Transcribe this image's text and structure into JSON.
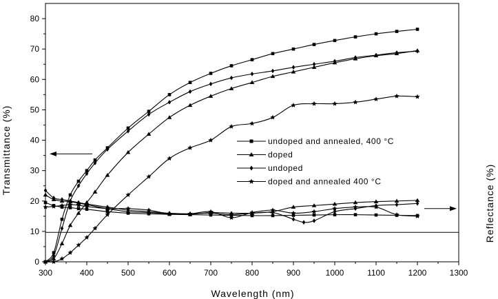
{
  "chart_data": {
    "type": "line",
    "xlabel": "Wavelength (nm)",
    "ylabel_left": "Transmittance (%)",
    "ylabel_right": "Reflectance (%)",
    "xlim": [
      300,
      1300
    ],
    "ylim": [
      0,
      85
    ],
    "x_ticks": [
      300,
      400,
      500,
      600,
      700,
      800,
      900,
      1000,
      1100,
      1200,
      1300
    ],
    "y_ticks": [
      0,
      10,
      20,
      30,
      40,
      50,
      60,
      70,
      80
    ],
    "grid": false,
    "reference_line_y": 9.7,
    "legend_position": "center-right",
    "series": [
      {
        "name": "undoped and annealed, 400 °C",
        "marker": "square",
        "group": "transmittance",
        "x": [
          300,
          320,
          340,
          360,
          380,
          400,
          420,
          450,
          500,
          550,
          600,
          650,
          700,
          750,
          800,
          850,
          900,
          950,
          1000,
          1050,
          1100,
          1150,
          1200
        ],
        "y": [
          0,
          3,
          14,
          22,
          26.5,
          30,
          33.5,
          37.5,
          44,
          49.5,
          55,
          59,
          62,
          64.5,
          66.5,
          68.5,
          70,
          71.5,
          72.8,
          74,
          75,
          75.8,
          76.5
        ]
      },
      {
        "name": "doped",
        "marker": "triangle",
        "group": "transmittance",
        "x": [
          300,
          320,
          340,
          360,
          380,
          400,
          420,
          450,
          500,
          550,
          600,
          650,
          700,
          750,
          800,
          850,
          900,
          950,
          1000,
          1050,
          1100,
          1150,
          1200
        ],
        "y": [
          0,
          1,
          6,
          12,
          16,
          19.5,
          23,
          28.5,
          36,
          42,
          47.5,
          51.5,
          54.5,
          57,
          59,
          61,
          62.5,
          64,
          65.5,
          66.8,
          67.8,
          68.5,
          69.5
        ]
      },
      {
        "name": "undoped",
        "marker": "diamond",
        "group": "transmittance",
        "x": [
          300,
          320,
          340,
          360,
          380,
          400,
          420,
          450,
          500,
          550,
          600,
          650,
          700,
          750,
          800,
          850,
          900,
          950,
          1000,
          1050,
          1100,
          1150,
          1200
        ],
        "y": [
          0,
          2,
          11,
          20,
          25,
          29,
          32.5,
          37,
          43,
          48.5,
          52.5,
          56,
          58.5,
          60.5,
          61.8,
          62.8,
          64,
          65,
          66,
          67.2,
          68,
          68.8,
          69.3
        ]
      },
      {
        "name": "doped and annealed 400 °C",
        "marker": "star",
        "group": "transmittance",
        "x": [
          300,
          320,
          340,
          360,
          380,
          400,
          420,
          450,
          500,
          550,
          600,
          650,
          700,
          750,
          800,
          850,
          900,
          950,
          1000,
          1050,
          1100,
          1150,
          1200
        ],
        "y": [
          0,
          0,
          1,
          3,
          5.5,
          8,
          11,
          15.5,
          22,
          28,
          34,
          37.5,
          40,
          44.5,
          45.5,
          47.5,
          51.5,
          52,
          52,
          52.5,
          53.5,
          54.5,
          54.3
        ]
      },
      {
        "name": "undoped and annealed, 400 °C",
        "marker": "square",
        "group": "reflectance",
        "x": [
          300,
          320,
          340,
          360,
          380,
          400,
          450,
          500,
          550,
          600,
          650,
          700,
          750,
          800,
          850,
          900,
          950,
          1000,
          1050,
          1100,
          1150,
          1200
        ],
        "y": [
          19.5,
          18.5,
          18,
          17.8,
          17.5,
          17.3,
          16.5,
          16,
          15.8,
          15.6,
          15.5,
          15.4,
          15.3,
          15.2,
          15.2,
          15.3,
          15.4,
          15.5,
          15.5,
          15.4,
          15.3,
          15.2
        ]
      },
      {
        "name": "doped",
        "marker": "triangle",
        "group": "reflectance",
        "x": [
          300,
          320,
          340,
          360,
          380,
          400,
          450,
          500,
          550,
          600,
          650,
          700,
          750,
          800,
          850,
          900,
          950,
          1000,
          1050,
          1100,
          1150,
          1200
        ],
        "y": [
          22,
          20.5,
          20,
          19.8,
          19.3,
          18.8,
          17.5,
          16.5,
          16.2,
          15.8,
          15.6,
          16.2,
          16,
          16,
          16.5,
          18,
          18.5,
          19,
          19.5,
          19.8,
          20,
          20.2
        ]
      },
      {
        "name": "undoped",
        "marker": "diamond",
        "group": "reflectance",
        "x": [
          300,
          320,
          340,
          360,
          380,
          400,
          450,
          500,
          550,
          600,
          650,
          700,
          750,
          800,
          850,
          900,
          925,
          950,
          1000,
          1050,
          1100,
          1150,
          1200
        ],
        "y": [
          23.5,
          21,
          20.5,
          20,
          19.5,
          19,
          18,
          17,
          16.5,
          16,
          15.8,
          16,
          15.5,
          16,
          16.2,
          14,
          13,
          13.5,
          16.5,
          17.5,
          18.5,
          18.8,
          19.2
        ]
      },
      {
        "name": "doped and annealed 400 °C",
        "marker": "star",
        "group": "reflectance",
        "x": [
          300,
          320,
          340,
          360,
          380,
          400,
          450,
          500,
          550,
          600,
          650,
          700,
          750,
          800,
          850,
          900,
          950,
          1000,
          1050,
          1100,
          1150,
          1200
        ],
        "y": [
          18,
          18.2,
          18.5,
          18.8,
          18.6,
          18.2,
          17.5,
          17.5,
          17,
          15.8,
          15.8,
          16.5,
          14.5,
          16.2,
          17,
          16,
          16.5,
          17.5,
          18,
          18,
          15.5,
          15
        ]
      }
    ],
    "legend": [
      {
        "label": "undoped and annealed, 400 °C",
        "marker": "square"
      },
      {
        "label": "doped",
        "marker": "triangle"
      },
      {
        "label": "undoped",
        "marker": "diamond"
      },
      {
        "label": "doped and annealed 400 °C",
        "marker": "star"
      }
    ],
    "annotations": [
      {
        "type": "arrow",
        "direction": "left",
        "meaning": "transmittance axis"
      },
      {
        "type": "arrow",
        "direction": "right",
        "meaning": "reflectance axis"
      }
    ]
  }
}
